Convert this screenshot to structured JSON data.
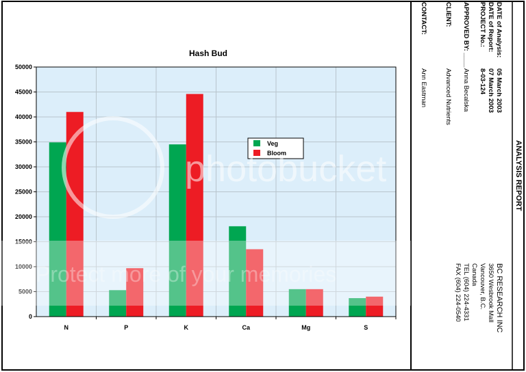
{
  "chart_data": {
    "type": "bar",
    "title": "Hash Bud",
    "categories": [
      "N",
      "P",
      "K",
      "Ca",
      "Mg",
      "S"
    ],
    "series": [
      {
        "name": "Veg",
        "color": "#00a651",
        "values": [
          34900,
          5300,
          34500,
          18100,
          5500,
          3700
        ]
      },
      {
        "name": "Bloom",
        "color": "#ed1c24",
        "values": [
          41000,
          9700,
          44600,
          13500,
          5500,
          4000
        ]
      }
    ],
    "ylim": [
      0,
      50000
    ],
    "yticks": [
      0,
      5000,
      10000,
      15000,
      20000,
      25000,
      30000,
      35000,
      40000,
      45000,
      50000
    ],
    "grid": true
  },
  "report": {
    "heading": "ANALYSIS REPORT",
    "fields": [
      {
        "label": "DATE of Analysis:",
        "value": "05 March 2003"
      },
      {
        "label": "DATE of Report:",
        "value": "07 March 2003"
      },
      {
        "label": "PROJECT No.:",
        "value": "8-03-124"
      },
      {
        "label": "APPROVED BY: ____",
        "value": "Anna Becalska"
      },
      {
        "label": "CLIENT:",
        "value": "Advanced Nutrients"
      },
      {
        "label": "CONTACT:",
        "value": "Ann Eastman"
      }
    ],
    "company": [
      "BC RESEARCH INC",
      "3650 Wesbrook Mall",
      "Vancouver, B.C.",
      "Canada",
      "TEL (604) 224-4331",
      "FAX (604) 224-0540"
    ]
  },
  "watermark": {
    "logo": "photobucket",
    "banner": "Protect more of your memories"
  }
}
